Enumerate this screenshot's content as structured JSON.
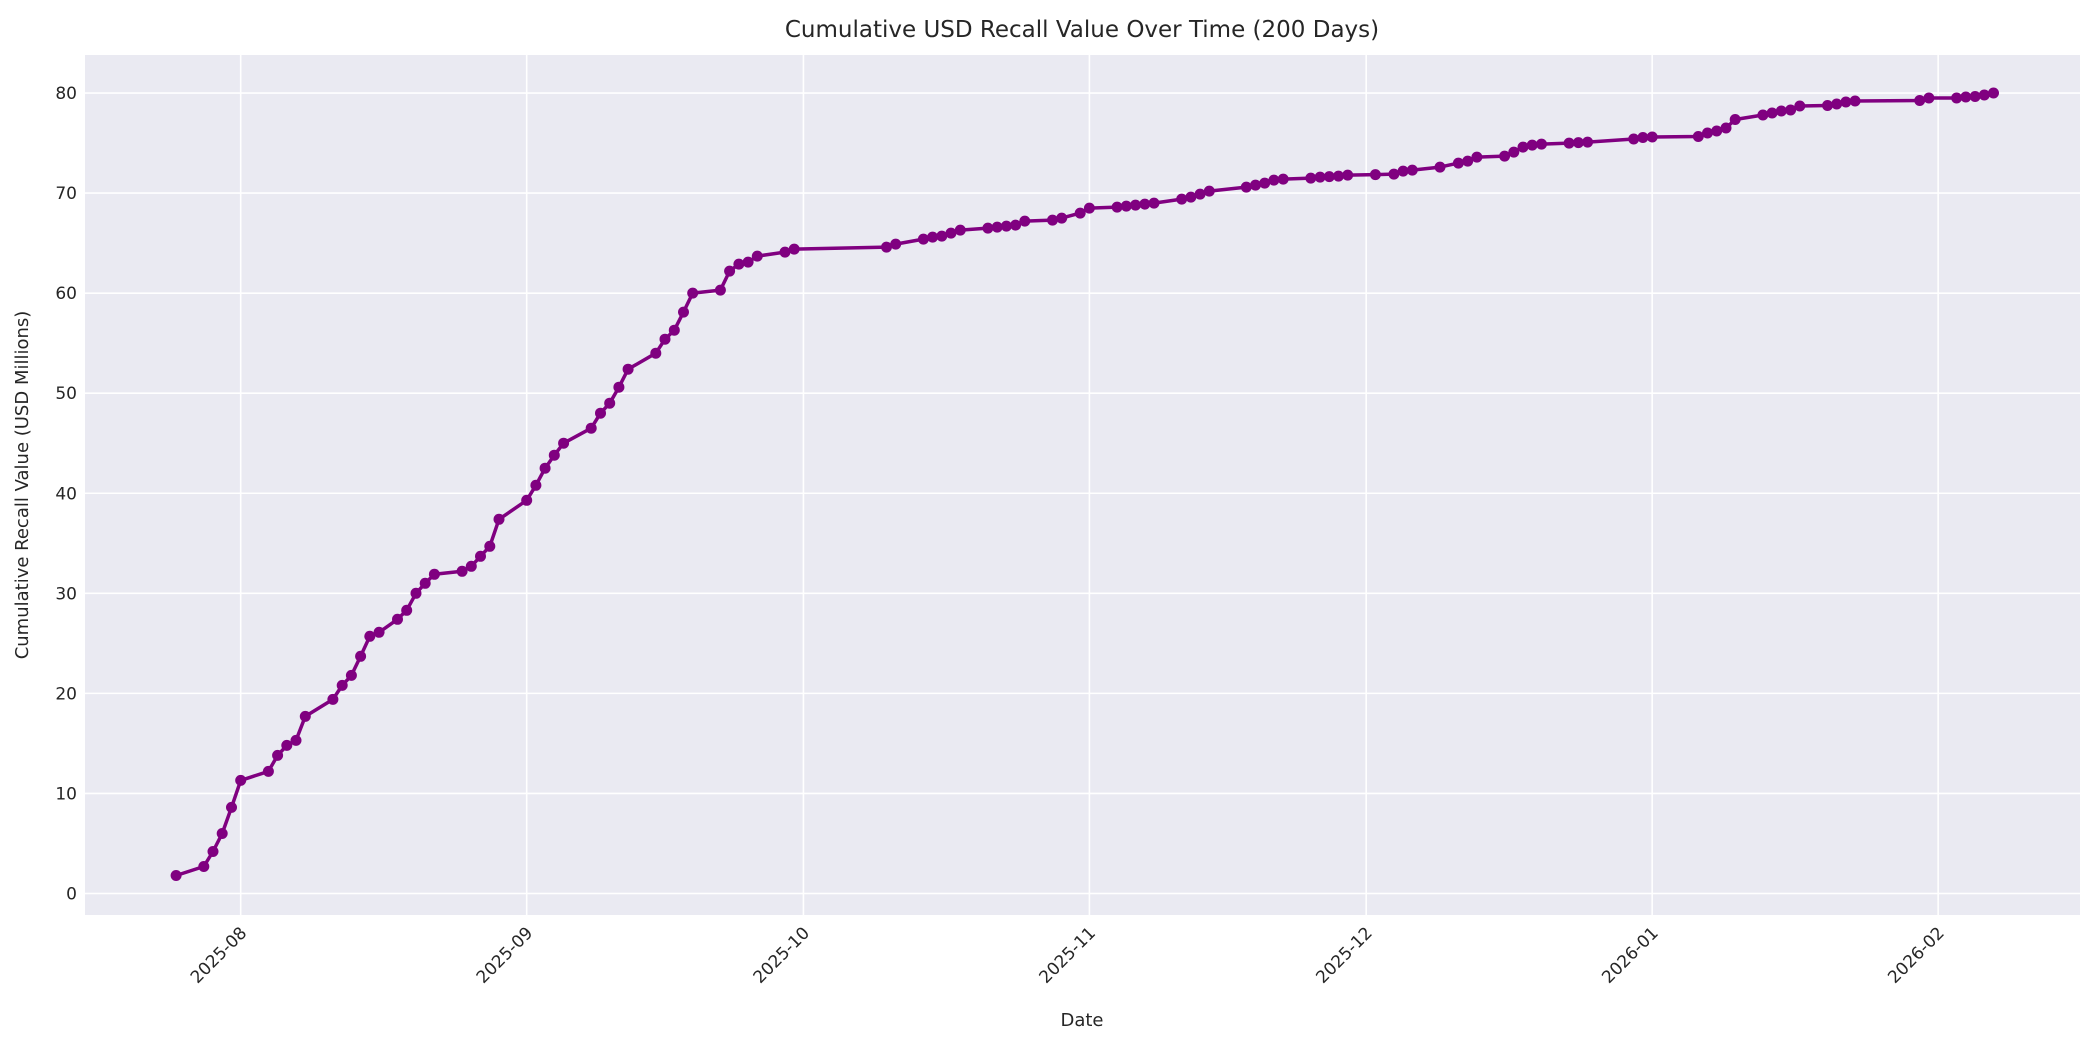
{
  "figure": {
    "background": "#ffffff",
    "plot_background": "#eaeaf2",
    "grid_color": "#f2f2f7",
    "grid_major_color": "#ffffff",
    "text_color": "#262626",
    "accent_color": "#800080"
  },
  "chart_data": {
    "type": "line",
    "title": "Cumulative USD Recall Value Over Time (200 Days)",
    "xlabel": "Date",
    "ylabel": "Cumulative Recall Value (USD Millions)",
    "legend": "none",
    "grid": true,
    "marker": "circle",
    "line_color": "#800080",
    "x_tick_rotation_deg": 45,
    "xlim_dates": [
      "2025-07-15T03:00:00Z",
      "2026-02-16T09:00:00Z"
    ],
    "ylim": [
      -2.15,
      83.8
    ],
    "y_ticks": [
      0,
      10,
      20,
      30,
      40,
      50,
      60,
      70,
      80
    ],
    "x_ticks": [
      {
        "label": "2025-08",
        "date": "2025-08-01"
      },
      {
        "label": "2025-09",
        "date": "2025-09-01"
      },
      {
        "label": "2025-10",
        "date": "2025-10-01"
      },
      {
        "label": "2025-11",
        "date": "2025-11-01"
      },
      {
        "label": "2025-12",
        "date": "2025-12-01"
      },
      {
        "label": "2026-01",
        "date": "2026-01-01"
      },
      {
        "label": "2026-02",
        "date": "2026-02-01"
      }
    ],
    "series": [
      {
        "name": "cumulative_recall_value_usd_millions",
        "color": "#800080",
        "points": [
          {
            "date": "2025-07-25",
            "value": 1.8
          },
          {
            "date": "2025-07-28",
            "value": 2.7
          },
          {
            "date": "2025-07-29",
            "value": 4.2
          },
          {
            "date": "2025-07-30",
            "value": 6.0
          },
          {
            "date": "2025-07-31",
            "value": 8.6
          },
          {
            "date": "2025-08-01",
            "value": 11.3
          },
          {
            "date": "2025-08-04",
            "value": 12.2
          },
          {
            "date": "2025-08-05",
            "value": 13.8
          },
          {
            "date": "2025-08-06",
            "value": 14.8
          },
          {
            "date": "2025-08-07",
            "value": 15.3
          },
          {
            "date": "2025-08-08",
            "value": 17.7
          },
          {
            "date": "2025-08-11",
            "value": 19.4
          },
          {
            "date": "2025-08-12",
            "value": 20.8
          },
          {
            "date": "2025-08-13",
            "value": 21.8
          },
          {
            "date": "2025-08-14",
            "value": 23.7
          },
          {
            "date": "2025-08-15",
            "value": 25.7
          },
          {
            "date": "2025-08-16",
            "value": 26.1
          },
          {
            "date": "2025-08-18",
            "value": 27.4
          },
          {
            "date": "2025-08-19",
            "value": 28.3
          },
          {
            "date": "2025-08-20",
            "value": 30.0
          },
          {
            "date": "2025-08-21",
            "value": 31.0
          },
          {
            "date": "2025-08-22",
            "value": 31.9
          },
          {
            "date": "2025-08-25",
            "value": 32.2
          },
          {
            "date": "2025-08-26",
            "value": 32.7
          },
          {
            "date": "2025-08-27",
            "value": 33.7
          },
          {
            "date": "2025-08-28",
            "value": 34.7
          },
          {
            "date": "2025-08-29",
            "value": 37.4
          },
          {
            "date": "2025-09-01",
            "value": 39.3
          },
          {
            "date": "2025-09-02",
            "value": 40.8
          },
          {
            "date": "2025-09-03",
            "value": 42.5
          },
          {
            "date": "2025-09-04",
            "value": 43.8
          },
          {
            "date": "2025-09-05",
            "value": 45.0
          },
          {
            "date": "2025-09-08",
            "value": 46.5
          },
          {
            "date": "2025-09-09",
            "value": 48.0
          },
          {
            "date": "2025-09-10",
            "value": 49.0
          },
          {
            "date": "2025-09-11",
            "value": 50.6
          },
          {
            "date": "2025-09-12",
            "value": 52.4
          },
          {
            "date": "2025-09-15",
            "value": 54.0
          },
          {
            "date": "2025-09-16",
            "value": 55.4
          },
          {
            "date": "2025-09-17",
            "value": 56.3
          },
          {
            "date": "2025-09-18",
            "value": 58.1
          },
          {
            "date": "2025-09-19",
            "value": 60.0
          },
          {
            "date": "2025-09-22",
            "value": 60.3
          },
          {
            "date": "2025-09-23",
            "value": 62.2
          },
          {
            "date": "2025-09-24",
            "value": 62.9
          },
          {
            "date": "2025-09-25",
            "value": 63.1
          },
          {
            "date": "2025-09-26",
            "value": 63.7
          },
          {
            "date": "2025-09-29",
            "value": 64.1
          },
          {
            "date": "2025-09-30",
            "value": 64.4
          },
          {
            "date": "2025-10-10",
            "value": 64.6
          },
          {
            "date": "2025-10-11",
            "value": 64.9
          },
          {
            "date": "2025-10-14",
            "value": 65.4
          },
          {
            "date": "2025-10-15",
            "value": 65.6
          },
          {
            "date": "2025-10-16",
            "value": 65.7
          },
          {
            "date": "2025-10-17",
            "value": 66.0
          },
          {
            "date": "2025-10-18",
            "value": 66.3
          },
          {
            "date": "2025-10-21",
            "value": 66.5
          },
          {
            "date": "2025-10-22",
            "value": 66.6
          },
          {
            "date": "2025-10-23",
            "value": 66.7
          },
          {
            "date": "2025-10-24",
            "value": 66.8
          },
          {
            "date": "2025-10-25",
            "value": 67.2
          },
          {
            "date": "2025-10-28",
            "value": 67.3
          },
          {
            "date": "2025-10-29",
            "value": 67.5
          },
          {
            "date": "2025-10-31",
            "value": 68.0
          },
          {
            "date": "2025-11-01",
            "value": 68.5
          },
          {
            "date": "2025-11-04",
            "value": 68.6
          },
          {
            "date": "2025-11-05",
            "value": 68.7
          },
          {
            "date": "2025-11-06",
            "value": 68.8
          },
          {
            "date": "2025-11-07",
            "value": 68.9
          },
          {
            "date": "2025-11-08",
            "value": 69.0
          },
          {
            "date": "2025-11-11",
            "value": 69.4
          },
          {
            "date": "2025-11-12",
            "value": 69.6
          },
          {
            "date": "2025-11-13",
            "value": 69.9
          },
          {
            "date": "2025-11-14",
            "value": 70.2
          },
          {
            "date": "2025-11-18",
            "value": 70.6
          },
          {
            "date": "2025-11-19",
            "value": 70.8
          },
          {
            "date": "2025-11-20",
            "value": 71.0
          },
          {
            "date": "2025-11-21",
            "value": 71.3
          },
          {
            "date": "2025-11-22",
            "value": 71.4
          },
          {
            "date": "2025-11-25",
            "value": 71.5
          },
          {
            "date": "2025-11-26",
            "value": 71.6
          },
          {
            "date": "2025-11-27",
            "value": 71.65
          },
          {
            "date": "2025-11-28",
            "value": 71.7
          },
          {
            "date": "2025-11-29",
            "value": 71.8
          },
          {
            "date": "2025-12-02",
            "value": 71.85
          },
          {
            "date": "2025-12-04",
            "value": 71.9
          },
          {
            "date": "2025-12-05",
            "value": 72.2
          },
          {
            "date": "2025-12-06",
            "value": 72.3
          },
          {
            "date": "2025-12-09",
            "value": 72.6
          },
          {
            "date": "2025-12-11",
            "value": 73.0
          },
          {
            "date": "2025-12-12",
            "value": 73.2
          },
          {
            "date": "2025-12-13",
            "value": 73.6
          },
          {
            "date": "2025-12-16",
            "value": 73.7
          },
          {
            "date": "2025-12-17",
            "value": 74.1
          },
          {
            "date": "2025-12-18",
            "value": 74.6
          },
          {
            "date": "2025-12-19",
            "value": 74.8
          },
          {
            "date": "2025-12-20",
            "value": 74.9
          },
          {
            "date": "2025-12-23",
            "value": 75.0
          },
          {
            "date": "2025-12-24",
            "value": 75.05
          },
          {
            "date": "2025-12-25",
            "value": 75.1
          },
          {
            "date": "2025-12-30",
            "value": 75.4
          },
          {
            "date": "2025-12-31",
            "value": 75.55
          },
          {
            "date": "2026-01-01",
            "value": 75.6
          },
          {
            "date": "2026-01-06",
            "value": 75.65
          },
          {
            "date": "2026-01-07",
            "value": 76.0
          },
          {
            "date": "2026-01-08",
            "value": 76.2
          },
          {
            "date": "2026-01-09",
            "value": 76.5
          },
          {
            "date": "2026-01-10",
            "value": 77.35
          },
          {
            "date": "2026-01-13",
            "value": 77.8
          },
          {
            "date": "2026-01-14",
            "value": 78.0
          },
          {
            "date": "2026-01-15",
            "value": 78.2
          },
          {
            "date": "2026-01-16",
            "value": 78.3
          },
          {
            "date": "2026-01-17",
            "value": 78.7
          },
          {
            "date": "2026-01-20",
            "value": 78.75
          },
          {
            "date": "2026-01-21",
            "value": 78.9
          },
          {
            "date": "2026-01-22",
            "value": 79.1
          },
          {
            "date": "2026-01-23",
            "value": 79.2
          },
          {
            "date": "2026-01-30",
            "value": 79.25
          },
          {
            "date": "2026-01-31",
            "value": 79.5
          },
          {
            "date": "2026-02-03",
            "value": 79.5
          },
          {
            "date": "2026-02-04",
            "value": 79.6
          },
          {
            "date": "2026-02-05",
            "value": 79.65
          },
          {
            "date": "2026-02-06",
            "value": 79.8
          },
          {
            "date": "2026-02-07",
            "value": 80.0
          }
        ]
      }
    ]
  }
}
